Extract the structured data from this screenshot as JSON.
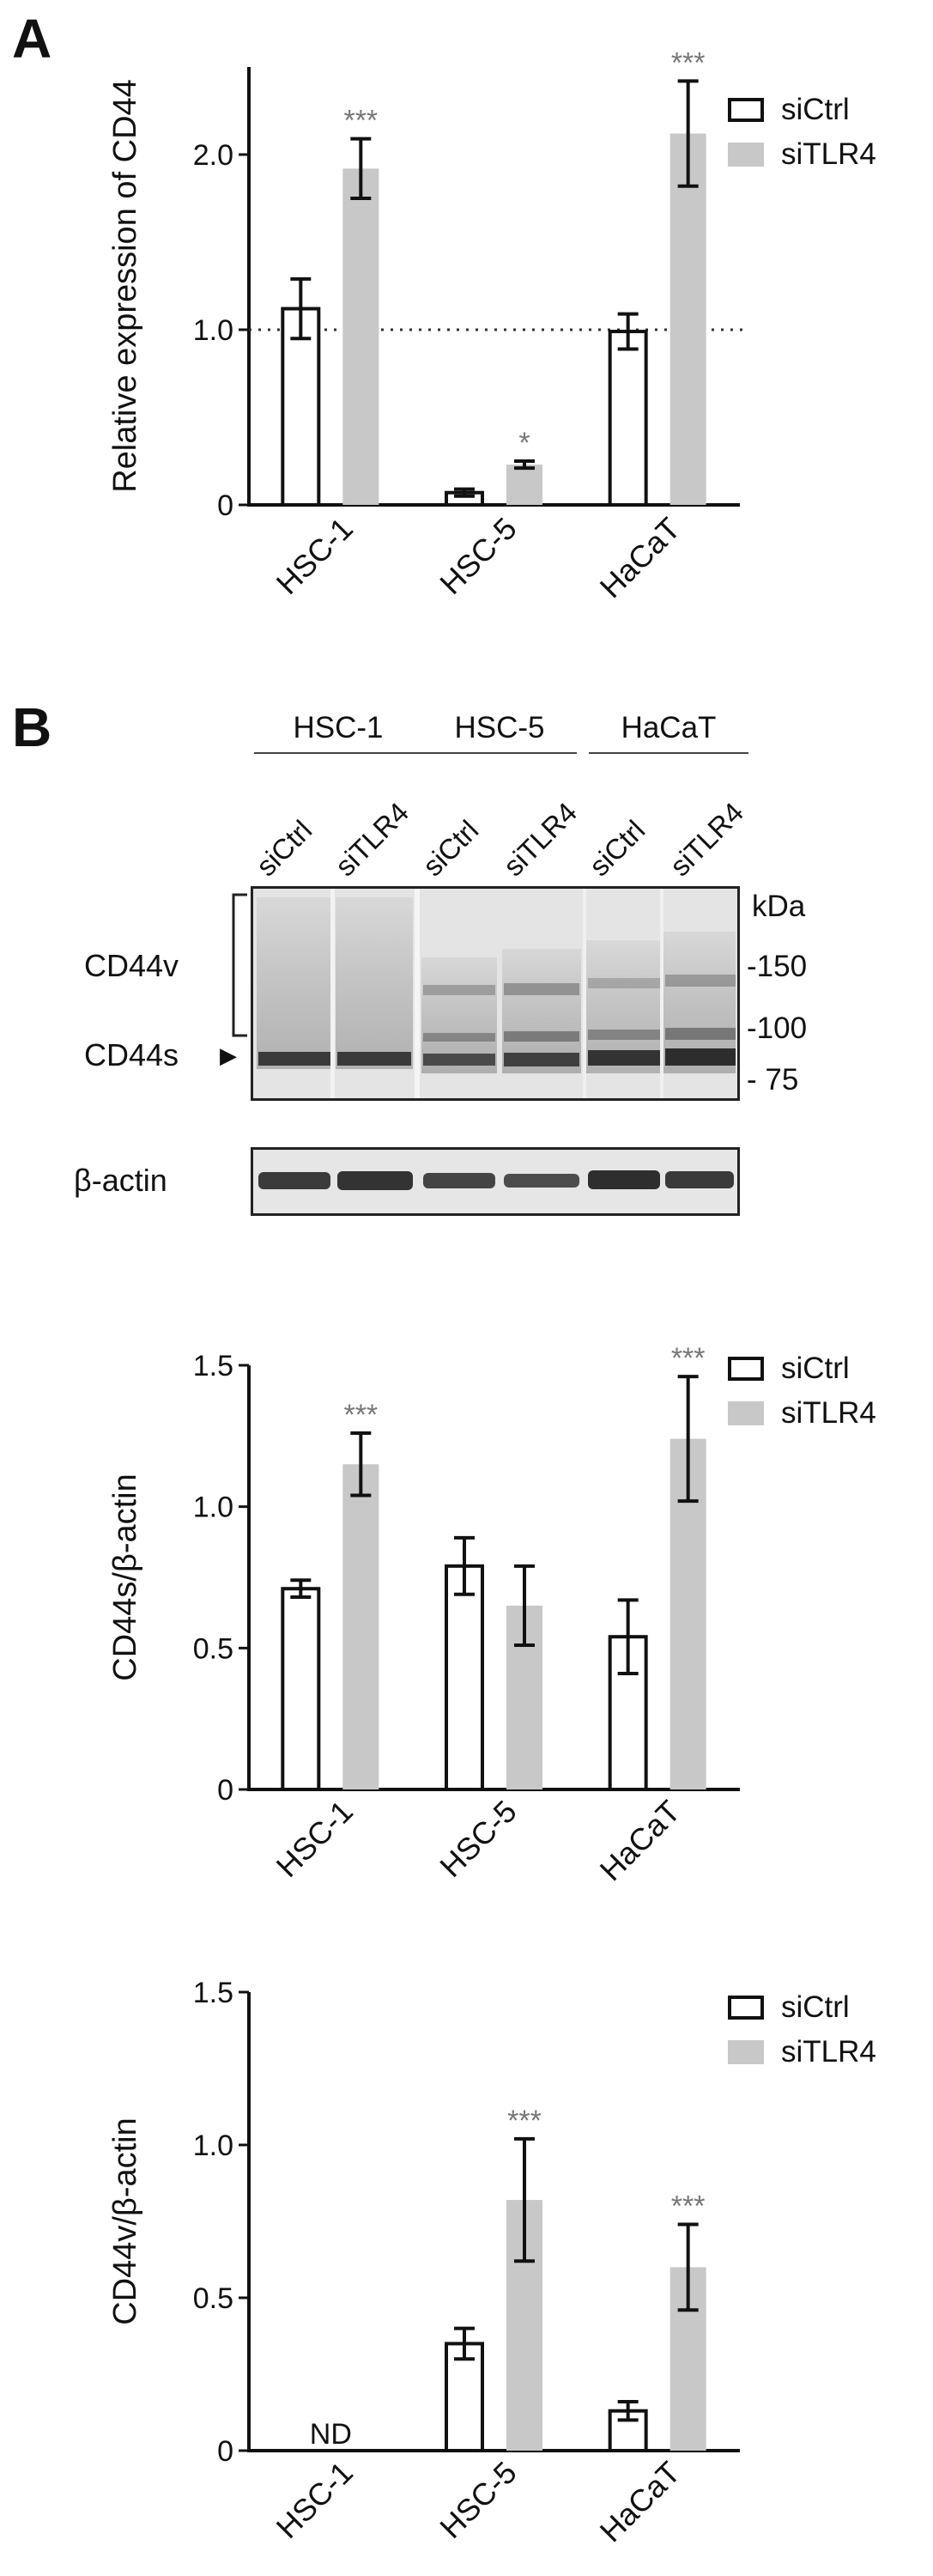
{
  "panels": {
    "a": "A",
    "b": "B"
  },
  "legend": {
    "ctrl": "siCtrl",
    "tlr4": "siTLR4"
  },
  "colors": {
    "ctrl_fill": "#ffffff",
    "ctrl_edge": "#111111",
    "tlr4_fill": "#c8c8c8",
    "sig": "#777777"
  },
  "blot": {
    "groups": [
      "HSC-1",
      "HSC-5",
      "HaCaT"
    ],
    "lanes": [
      "siCtrl",
      "siTLR4",
      "siCtrl",
      "siTLR4",
      "siCtrl",
      "siTLR4"
    ],
    "kda_label": "kDa",
    "markers": [
      "-150",
      "-100",
      "- 75"
    ],
    "cd44v_label": "CD44v",
    "cd44s_label": "CD44s",
    "arrow": "▶",
    "actin_label": "β-actin"
  },
  "chart_data": [
    {
      "type": "bar",
      "title": "",
      "xlabel": "",
      "ylabel": "Relative expression of CD44",
      "categories": [
        "HSC-1",
        "HSC-5",
        "HaCaT"
      ],
      "ylim": [
        0,
        2.5
      ],
      "yticks": [
        "0",
        "1.0",
        "2.0"
      ],
      "reference_line": 1.0,
      "series": [
        {
          "name": "siCtrl",
          "values": [
            1.12,
            0.07,
            0.99
          ],
          "errors": [
            0.17,
            0.02,
            0.1
          ]
        },
        {
          "name": "siTLR4",
          "values": [
            1.92,
            0.23,
            2.12
          ],
          "errors": [
            0.17,
            0.02,
            0.3
          ]
        }
      ],
      "annotations": [
        "***",
        "*",
        "***"
      ]
    },
    {
      "type": "bar",
      "title": "",
      "xlabel": "",
      "ylabel": "CD44s/β-actin",
      "categories": [
        "HSC-1",
        "HSC-5",
        "HaCaT"
      ],
      "ylim": [
        0,
        1.5
      ],
      "yticks": [
        "0",
        "0.5",
        "1.0",
        "1.5"
      ],
      "series": [
        {
          "name": "siCtrl",
          "values": [
            0.71,
            0.79,
            0.54
          ],
          "errors": [
            0.03,
            0.1,
            0.13
          ]
        },
        {
          "name": "siTLR4",
          "values": [
            1.15,
            0.65,
            1.24
          ],
          "errors": [
            0.11,
            0.14,
            0.22
          ]
        }
      ],
      "annotations": [
        "***",
        "",
        "***"
      ]
    },
    {
      "type": "bar",
      "title": "",
      "xlabel": "",
      "ylabel": "CD44v/β-actin",
      "categories": [
        "HSC-1",
        "HSC-5",
        "HaCaT"
      ],
      "ylim": [
        0,
        1.5
      ],
      "yticks": [
        "0",
        "0.5",
        "1.0",
        "1.5"
      ],
      "series": [
        {
          "name": "siCtrl",
          "values": [
            null,
            0.35,
            0.13
          ],
          "errors": [
            null,
            0.05,
            0.03
          ]
        },
        {
          "name": "siTLR4",
          "values": [
            null,
            0.82,
            0.6
          ],
          "errors": [
            null,
            0.2,
            0.14
          ]
        }
      ],
      "nd_label": "ND",
      "annotations": [
        "",
        "***",
        "***"
      ]
    }
  ]
}
